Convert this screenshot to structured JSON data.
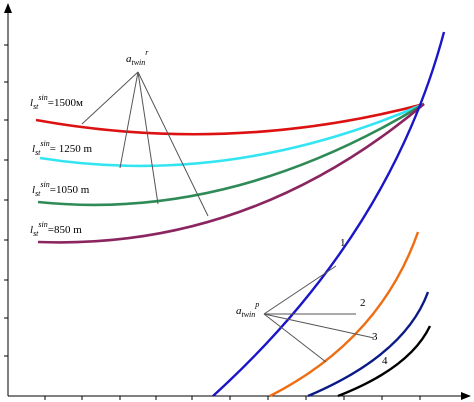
{
  "chart_data": {
    "type": "line",
    "title": "",
    "xlabel": "",
    "ylabel": "",
    "grid": false,
    "axis_ticks_labeled": false,
    "series": [
      {
        "name": "",
        "color": "#dd1111",
        "curve": "l_st_sin_1500"
      },
      {
        "name": "",
        "color": "#33e5f2",
        "curve": "l_st_sin_1250"
      },
      {
        "name": "",
        "color": "#2e8b57",
        "curve": "l_st_sin_1050"
      },
      {
        "name": "",
        "color": "#8b2560",
        "curve": "l_st_sin_850"
      },
      {
        "name": "",
        "color": "#1a16c8",
        "curve": "1"
      },
      {
        "name": "",
        "color": "#ef6d12",
        "curve": "2"
      },
      {
        "name": "",
        "color": "#0a1a86",
        "curve": "3"
      },
      {
        "name": "",
        "color": "#000000",
        "curve": "4"
      }
    ],
    "upper_family_labels": [
      {
        "main": "l",
        "sub": "st",
        "sup": "sin",
        "value": "=1500м"
      },
      {
        "main": "l",
        "sub": "st",
        "sup": "sin",
        "value": "= 1250 m"
      },
      {
        "main": "l",
        "sub": "st",
        "sup": "sin",
        "value": "=1050 m"
      },
      {
        "main": "l",
        "sub": "st",
        "sup": "sin",
        "value": "=850 m"
      }
    ],
    "annotations": {
      "upper": {
        "main": "a",
        "sub": "twin",
        "sup": "r"
      },
      "lower": {
        "main": "a",
        "sub": "twin",
        "sup": "p"
      },
      "curve_numbers": [
        "1",
        "2",
        "3",
        "4"
      ]
    }
  }
}
